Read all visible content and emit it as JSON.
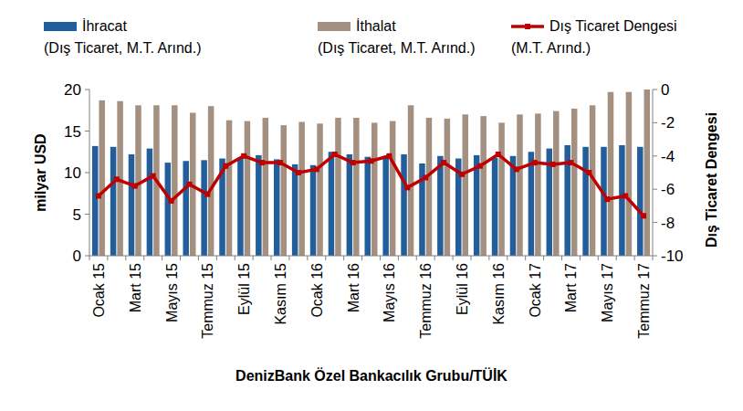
{
  "chart_data": {
    "type": "bar",
    "source": "DenizBank Özel Bankacılık Grubu/TÜİK",
    "y_label": "milyar USD",
    "y2_label": "Dış Ticaret Dengesi",
    "categories": [
      "Ocak 15",
      null,
      "Mart 15",
      null,
      "Mayıs 15",
      null,
      "Temmuz 15",
      null,
      "Eylül 15",
      null,
      "Kasım 15",
      null,
      "Ocak 16",
      null,
      "Mart 16",
      null,
      "Mayıs 16",
      null,
      "Temmuz 16",
      null,
      "Eylül 16",
      null,
      "Kasım 16",
      null,
      "Ocak 17",
      null,
      "Mart 17",
      null,
      "Mayıs 17",
      null,
      "Temmuz 17"
    ],
    "ylim": [
      0,
      20
    ],
    "yticks": [
      0,
      5,
      10,
      15,
      20
    ],
    "y2lim": [
      -10,
      0
    ],
    "y2ticks": [
      -10,
      -8,
      -6,
      -4,
      -2,
      0
    ],
    "grid": false,
    "legend": "top",
    "series": [
      {
        "name": "İhracat (Dış Ticaret, M.T. Arınd.)",
        "type": "bar",
        "color": "#215e9b",
        "values": [
          13.2,
          13.1,
          12.2,
          12.9,
          11.2,
          11.4,
          11.5,
          11.7,
          11.8,
          12.1,
          11.6,
          11.0,
          10.9,
          12.5,
          12.2,
          11.9,
          12.0,
          12.2,
          11.1,
          12.0,
          11.7,
          12.1,
          11.8,
          12.0,
          12.5,
          12.9,
          13.3,
          13.1,
          13.1,
          13.3,
          13.1
        ]
      },
      {
        "name": "İthalat (Dış Ticaret, M.T. Arınd.)",
        "type": "bar",
        "color": "#a39080",
        "values": [
          18.7,
          18.6,
          18.1,
          18.1,
          18.1,
          17.2,
          18.0,
          16.3,
          16.2,
          16.6,
          15.7,
          16.1,
          15.9,
          16.6,
          16.6,
          16.0,
          16.2,
          18.1,
          16.6,
          16.5,
          17.0,
          16.8,
          16.0,
          17.0,
          17.1,
          17.4,
          17.7,
          18.1,
          19.7,
          19.7,
          20.0
        ]
      },
      {
        "name": "Dış Ticaret Dengesi (M.T. Arınd.)",
        "type": "line",
        "axis": "y2",
        "color": "#c00000",
        "marker": "square",
        "values": [
          -6.4,
          -5.4,
          -5.8,
          -5.2,
          -6.7,
          -5.7,
          -6.3,
          -4.6,
          -4.0,
          -4.4,
          -4.4,
          -5.0,
          -4.8,
          -3.9,
          -4.4,
          -4.3,
          -4.0,
          -5.9,
          -5.3,
          -4.4,
          -5.1,
          -4.6,
          -3.9,
          -4.8,
          -4.4,
          -4.5,
          -4.4,
          -5.0,
          -6.6,
          -6.4,
          -7.6
        ]
      }
    ]
  }
}
